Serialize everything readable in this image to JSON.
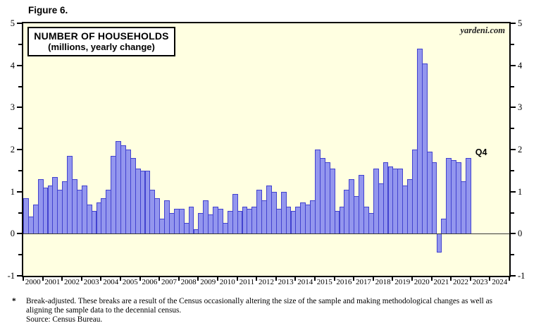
{
  "figure_label": "Figure 6.",
  "watermark": "yardeni.com",
  "q4_annotation": "Q4",
  "footnote": {
    "marker": "*",
    "line1": "Break-adjusted. These breaks are a result of the Census occasionally altering the size of the sample and making methodological changes as well as",
    "line2": "aligning the sample data to the decennial census.",
    "line3": "Source: Census Bureau."
  },
  "colors": {
    "plot_bg": "#ffffe1",
    "bar_fill": "#9396ee",
    "bar_border": "#4242cf",
    "axis": "#000000",
    "zero_line": "#3a3a3a"
  },
  "chart_data": {
    "type": "bar",
    "title": "NUMBER OF HOUSEHOLDS",
    "subtitle": "(millions, yearly change)",
    "ylabel": "",
    "xlabel": "",
    "ylim": [
      -1,
      5
    ],
    "y_major_ticks": [
      -1,
      0,
      1,
      2,
      3,
      4,
      5
    ],
    "y_minor_ticks": [
      -0.5,
      0.5,
      1.5,
      2.5,
      3.5,
      4.5
    ],
    "grid": false,
    "x_year_labels": [
      "2000",
      "2001",
      "2002",
      "2003",
      "2004",
      "2005",
      "2006",
      "2007",
      "2008",
      "2009",
      "2010",
      "2011",
      "2012",
      "2013",
      "2014",
      "2015",
      "2016",
      "2017",
      "2018",
      "2019",
      "2020",
      "2021",
      "2022",
      "2023",
      "2024"
    ],
    "frequency": "quarterly",
    "last_point_label": "Q4",
    "years": [
      {
        "year": "2000",
        "quarters": [
          0.85,
          0.4,
          0.7,
          1.3
        ]
      },
      {
        "year": "2001",
        "quarters": [
          1.1,
          1.15,
          1.35,
          1.05
        ]
      },
      {
        "year": "2002",
        "quarters": [
          1.25,
          1.85,
          1.3,
          1.05
        ]
      },
      {
        "year": "2003",
        "quarters": [
          1.15,
          0.7,
          0.55,
          0.75
        ]
      },
      {
        "year": "2004",
        "quarters": [
          0.85,
          1.05,
          1.85,
          2.2
        ]
      },
      {
        "year": "2005",
        "quarters": [
          2.1,
          2.0,
          1.8,
          1.55
        ]
      },
      {
        "year": "2006",
        "quarters": [
          1.5,
          1.5,
          1.05,
          0.85
        ]
      },
      {
        "year": "2007",
        "quarters": [
          0.35,
          0.8,
          0.5,
          0.6
        ]
      },
      {
        "year": "2008",
        "quarters": [
          0.6,
          0.25,
          0.65,
          0.1
        ]
      },
      {
        "year": "2009",
        "quarters": [
          0.5,
          0.8,
          0.45,
          0.65
        ]
      },
      {
        "year": "2010",
        "quarters": [
          0.6,
          0.25,
          0.55,
          0.95
        ]
      },
      {
        "year": "2011",
        "quarters": [
          0.55,
          0.65,
          0.6,
          0.65
        ]
      },
      {
        "year": "2012",
        "quarters": [
          1.05,
          0.8,
          1.15,
          1.0
        ]
      },
      {
        "year": "2013",
        "quarters": [
          0.6,
          1.0,
          0.65,
          0.55
        ]
      },
      {
        "year": "2014",
        "quarters": [
          0.65,
          0.75,
          0.7,
          0.8
        ]
      },
      {
        "year": "2015",
        "quarters": [
          2.0,
          1.8,
          1.7,
          1.55
        ]
      },
      {
        "year": "2016",
        "quarters": [
          0.55,
          0.65,
          1.05,
          1.3
        ]
      },
      {
        "year": "2017",
        "quarters": [
          0.9,
          1.4,
          0.65,
          0.5
        ]
      },
      {
        "year": "2018",
        "quarters": [
          1.55,
          1.2,
          1.7,
          1.6
        ]
      },
      {
        "year": "2019",
        "quarters": [
          1.55,
          1.55,
          1.15,
          1.3
        ]
      },
      {
        "year": "2020",
        "quarters": [
          2.0,
          4.4,
          4.05,
          1.95
        ]
      },
      {
        "year": "2021",
        "quarters": [
          1.7,
          -0.45,
          0.35,
          1.8
        ]
      },
      {
        "year": "2022",
        "quarters": [
          1.75,
          1.7,
          1.25,
          1.8
        ]
      },
      {
        "year": "2023",
        "quarters": []
      },
      {
        "year": "2024",
        "quarters": []
      }
    ]
  }
}
